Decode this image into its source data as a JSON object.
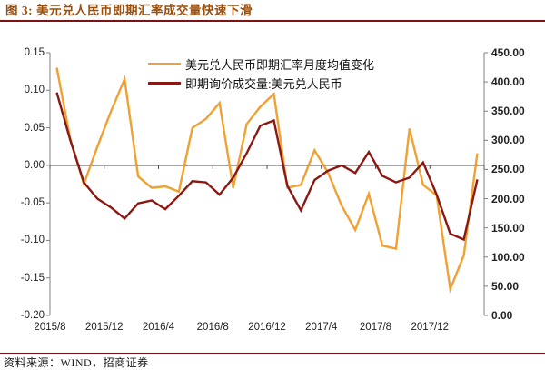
{
  "header": {
    "title": "图 3: 美元兑人民币即期汇率成交量快速下滑"
  },
  "footer": {
    "source": "资料来源：WIND，招商证券"
  },
  "colors": {
    "title_text": "#9a4f0e",
    "header_rule": "#7e1112",
    "footer_rule": "#7e1112",
    "axis_line": "#808080",
    "zero_line": "#4d4d4d",
    "label_text": "#222222",
    "series_orange": "#f0a132",
    "series_maroon": "#8b1812"
  },
  "chart_data": {
    "type": "line",
    "title": "美元兑人民币即期汇率成交量快速下滑",
    "x": [
      "2015/8",
      "2015/9",
      "2015/10",
      "2015/11",
      "2015/12",
      "2016/1",
      "2016/2",
      "2016/3",
      "2016/4",
      "2016/5",
      "2016/6",
      "2016/7",
      "2016/8",
      "2016/9",
      "2016/10",
      "2016/11",
      "2016/12",
      "2017/1",
      "2017/2",
      "2017/3",
      "2017/4",
      "2017/5",
      "2017/6",
      "2017/7",
      "2017/8",
      "2017/9",
      "2017/10",
      "2017/11",
      "2017/12",
      "2018/1",
      "2018/2",
      "2018/3"
    ],
    "x_tick_labels": [
      "2015/8",
      "2015/12",
      "2016/4",
      "2016/8",
      "2016/12",
      "2017/4",
      "2017/8",
      "2017/12"
    ],
    "series": [
      {
        "name": "美元兑人民币即期汇率月度均值变化",
        "axis": "left",
        "color": "#f0a132",
        "values": [
          0.13,
          0.035,
          -0.025,
          0.025,
          0.072,
          0.115,
          -0.015,
          -0.03,
          -0.028,
          -0.035,
          0.05,
          0.062,
          0.083,
          -0.03,
          0.055,
          0.078,
          0.095,
          -0.03,
          -0.026,
          0.02,
          -0.01,
          -0.054,
          -0.086,
          -0.038,
          -0.107,
          -0.111,
          0.049,
          -0.026,
          -0.04,
          -0.165,
          -0.12,
          0.016
        ]
      },
      {
        "name": "即期询价成交量:美元兑人民币",
        "axis": "right",
        "color": "#8b1812",
        "values": [
          382,
          300,
          228,
          200,
          185,
          166,
          192,
          197,
          182,
          205,
          230,
          228,
          207,
          236,
          278,
          325,
          334,
          222,
          180,
          232,
          248,
          257,
          244,
          280,
          239,
          228,
          236,
          262,
          207,
          140,
          130,
          233
        ]
      }
    ],
    "left_axis": {
      "min": -0.2,
      "max": 0.15,
      "step": 0.05,
      "labels": [
        "0.15",
        "0.10",
        "0.05",
        "0.00",
        "-0.05",
        "-0.10",
        "-0.15",
        "-0.20"
      ]
    },
    "right_axis": {
      "min": 0,
      "max": 450,
      "step": 50,
      "labels": [
        "450.00",
        "400.00",
        "350.00",
        "300.00",
        "250.00",
        "200.00",
        "150.00",
        "100.00",
        "50.00",
        "0.00"
      ]
    },
    "legend_position": "top-center",
    "grid": false
  }
}
